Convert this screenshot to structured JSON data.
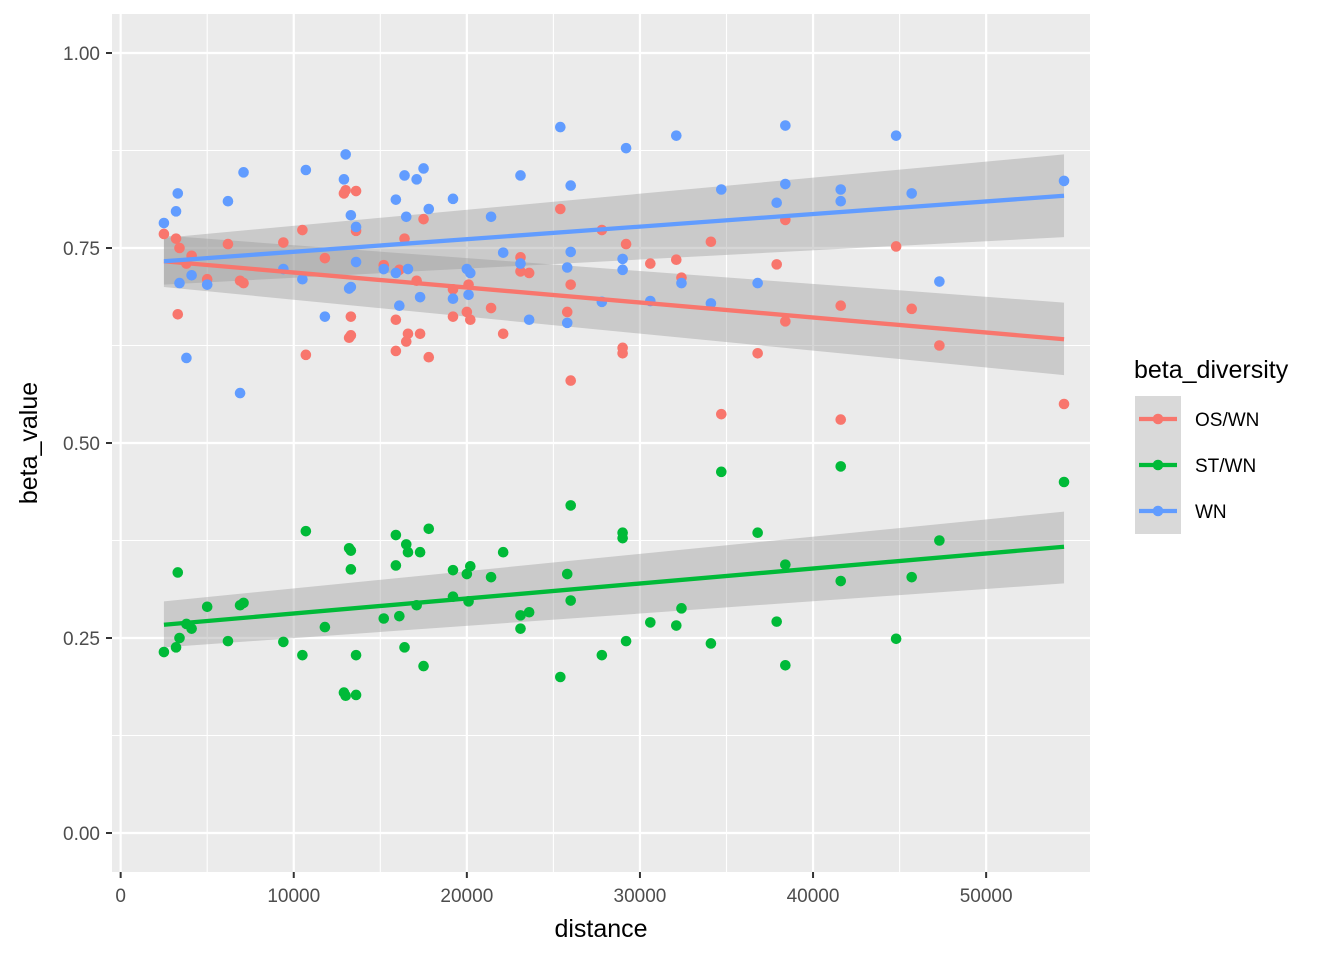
{
  "chart_data": {
    "type": "scatter",
    "xlabel": "distance",
    "ylabel": "beta_value",
    "xlim": [
      -500,
      56000
    ],
    "ylim": [
      -0.05,
      1.05
    ],
    "xticks": [
      0,
      10000,
      20000,
      30000,
      40000,
      50000
    ],
    "xtick_labels": [
      "0",
      "10000",
      "20000",
      "30000",
      "40000",
      "50000"
    ],
    "yticks": [
      0,
      0.25,
      0.5,
      0.75,
      1
    ],
    "ytick_labels": [
      "0.00",
      "0.25",
      "0.50",
      "0.75",
      "1.00"
    ],
    "grid": true,
    "legend": {
      "title": "beta_diversity",
      "position": "right"
    },
    "series": [
      {
        "name": "OS/WN",
        "color": "#F8766D",
        "trend": {
          "x": [
            2500,
            54500
          ],
          "y": [
            0.733,
            0.633
          ]
        },
        "ci": {
          "x": [
            2500,
            54500
          ],
          "upper": [
            0.766,
            0.68
          ],
          "lower": [
            0.7,
            0.587
          ]
        },
        "points": [
          [
            2500,
            0.768
          ],
          [
            3200,
            0.762
          ],
          [
            3300,
            0.665
          ],
          [
            3400,
            0.75
          ],
          [
            3800,
            0.73
          ],
          [
            4100,
            0.74
          ],
          [
            5000,
            0.71
          ],
          [
            6900,
            0.708
          ],
          [
            7100,
            0.705
          ],
          [
            6200,
            0.755
          ],
          [
            9400,
            0.757
          ],
          [
            10500,
            0.773
          ],
          [
            10700,
            0.613
          ],
          [
            11800,
            0.737
          ],
          [
            12900,
            0.82
          ],
          [
            13000,
            0.824
          ],
          [
            13200,
            0.635
          ],
          [
            13300,
            0.638
          ],
          [
            13300,
            0.662
          ],
          [
            13600,
            0.772
          ],
          [
            13600,
            0.823
          ],
          [
            15200,
            0.728
          ],
          [
            15900,
            0.658
          ],
          [
            15900,
            0.618
          ],
          [
            16100,
            0.722
          ],
          [
            16400,
            0.762
          ],
          [
            16500,
            0.63
          ],
          [
            16600,
            0.64
          ],
          [
            17100,
            0.708
          ],
          [
            17300,
            0.64
          ],
          [
            17500,
            0.787
          ],
          [
            17800,
            0.61
          ],
          [
            19200,
            0.662
          ],
          [
            19200,
            0.697
          ],
          [
            20000,
            0.668
          ],
          [
            20100,
            0.703
          ],
          [
            20200,
            0.658
          ],
          [
            21400,
            0.673
          ],
          [
            22100,
            0.64
          ],
          [
            23100,
            0.738
          ],
          [
            23100,
            0.72
          ],
          [
            23600,
            0.718
          ],
          [
            25400,
            0.8
          ],
          [
            25800,
            0.668
          ],
          [
            26000,
            0.703
          ],
          [
            26000,
            0.58
          ],
          [
            27800,
            0.773
          ],
          [
            29000,
            0.622
          ],
          [
            29000,
            0.615
          ],
          [
            29200,
            0.755
          ],
          [
            30600,
            0.73
          ],
          [
            32100,
            0.735
          ],
          [
            32400,
            0.712
          ],
          [
            34100,
            0.758
          ],
          [
            34700,
            0.537
          ],
          [
            36800,
            0.615
          ],
          [
            37900,
            0.729
          ],
          [
            38400,
            0.786
          ],
          [
            38400,
            0.656
          ],
          [
            41600,
            0.676
          ],
          [
            41600,
            0.53
          ],
          [
            44800,
            0.752
          ],
          [
            45700,
            0.672
          ],
          [
            47300,
            0.625
          ],
          [
            54500,
            0.55
          ]
        ]
      },
      {
        "name": "ST/WN",
        "color": "#00BA38",
        "trend": {
          "x": [
            2500,
            54500
          ],
          "y": [
            0.267,
            0.367
          ]
        },
        "ci": {
          "x": [
            2500,
            54500
          ],
          "upper": [
            0.297,
            0.412
          ],
          "lower": [
            0.238,
            0.32
          ]
        },
        "points": [
          [
            2500,
            0.232
          ],
          [
            3200,
            0.238
          ],
          [
            3300,
            0.334
          ],
          [
            3400,
            0.25
          ],
          [
            3800,
            0.268
          ],
          [
            4100,
            0.262
          ],
          [
            5000,
            0.29
          ],
          [
            6200,
            0.246
          ],
          [
            6900,
            0.292
          ],
          [
            7100,
            0.295
          ],
          [
            9400,
            0.245
          ],
          [
            10500,
            0.228
          ],
          [
            10700,
            0.387
          ],
          [
            11800,
            0.264
          ],
          [
            12900,
            0.18
          ],
          [
            13000,
            0.176
          ],
          [
            13200,
            0.365
          ],
          [
            13300,
            0.362
          ],
          [
            13300,
            0.338
          ],
          [
            13600,
            0.177
          ],
          [
            13600,
            0.228
          ],
          [
            15200,
            0.275
          ],
          [
            15900,
            0.382
          ],
          [
            15900,
            0.343
          ],
          [
            16100,
            0.278
          ],
          [
            16400,
            0.238
          ],
          [
            16500,
            0.37
          ],
          [
            16600,
            0.36
          ],
          [
            17100,
            0.292
          ],
          [
            17300,
            0.36
          ],
          [
            17500,
            0.214
          ],
          [
            17800,
            0.39
          ],
          [
            19200,
            0.337
          ],
          [
            19200,
            0.303
          ],
          [
            20000,
            0.332
          ],
          [
            20100,
            0.297
          ],
          [
            20200,
            0.342
          ],
          [
            21400,
            0.328
          ],
          [
            22100,
            0.36
          ],
          [
            23100,
            0.262
          ],
          [
            23100,
            0.279
          ],
          [
            23600,
            0.283
          ],
          [
            25400,
            0.2
          ],
          [
            25800,
            0.332
          ],
          [
            26000,
            0.298
          ],
          [
            26000,
            0.42
          ],
          [
            27800,
            0.228
          ],
          [
            29000,
            0.385
          ],
          [
            29000,
            0.378
          ],
          [
            29200,
            0.246
          ],
          [
            30600,
            0.27
          ],
          [
            32100,
            0.266
          ],
          [
            32400,
            0.288
          ],
          [
            34100,
            0.243
          ],
          [
            34700,
            0.463
          ],
          [
            36800,
            0.385
          ],
          [
            37900,
            0.271
          ],
          [
            38400,
            0.344
          ],
          [
            38400,
            0.215
          ],
          [
            41600,
            0.323
          ],
          [
            41600,
            0.47
          ],
          [
            44800,
            0.249
          ],
          [
            45700,
            0.328
          ],
          [
            47300,
            0.375
          ],
          [
            54500,
            0.45
          ]
        ]
      },
      {
        "name": "WN",
        "color": "#619CFF",
        "trend": {
          "x": [
            2500,
            54500
          ],
          "y": [
            0.733,
            0.817
          ]
        },
        "ci": {
          "x": [
            2500,
            54500
          ],
          "upper": [
            0.763,
            0.87
          ],
          "lower": [
            0.703,
            0.764
          ]
        },
        "points": [
          [
            2500,
            0.782
          ],
          [
            3200,
            0.797
          ],
          [
            3300,
            0.82
          ],
          [
            3400,
            0.705
          ],
          [
            3800,
            0.609
          ],
          [
            4100,
            0.715
          ],
          [
            5000,
            0.703
          ],
          [
            6200,
            0.81
          ],
          [
            6900,
            0.564
          ],
          [
            7100,
            0.847
          ],
          [
            9400,
            0.723
          ],
          [
            10500,
            0.71
          ],
          [
            10700,
            0.85
          ],
          [
            11800,
            0.662
          ],
          [
            12900,
            0.838
          ],
          [
            13000,
            0.87
          ],
          [
            13200,
            0.698
          ],
          [
            13300,
            0.792
          ],
          [
            13300,
            0.7
          ],
          [
            13600,
            0.732
          ],
          [
            13600,
            0.777
          ],
          [
            15200,
            0.723
          ],
          [
            15900,
            0.812
          ],
          [
            15900,
            0.718
          ],
          [
            16100,
            0.676
          ],
          [
            16400,
            0.843
          ],
          [
            16500,
            0.79
          ],
          [
            16600,
            0.723
          ],
          [
            17100,
            0.838
          ],
          [
            17300,
            0.687
          ],
          [
            17500,
            0.852
          ],
          [
            17800,
            0.8
          ],
          [
            19200,
            0.813
          ],
          [
            19200,
            0.685
          ],
          [
            20000,
            0.723
          ],
          [
            20100,
            0.69
          ],
          [
            20200,
            0.718
          ],
          [
            21400,
            0.79
          ],
          [
            22100,
            0.744
          ],
          [
            23100,
            0.843
          ],
          [
            23100,
            0.73
          ],
          [
            23600,
            0.658
          ],
          [
            25400,
            0.905
          ],
          [
            25800,
            0.725
          ],
          [
            26000,
            0.83
          ],
          [
            26000,
            0.745
          ],
          [
            25800,
            0.654
          ],
          [
            27800,
            0.681
          ],
          [
            29000,
            0.736
          ],
          [
            29000,
            0.722
          ],
          [
            29200,
            0.878
          ],
          [
            30600,
            0.682
          ],
          [
            32100,
            0.894
          ],
          [
            32400,
            0.705
          ],
          [
            34100,
            0.679
          ],
          [
            34700,
            0.825
          ],
          [
            36800,
            0.705
          ],
          [
            37900,
            0.808
          ],
          [
            38400,
            0.907
          ],
          [
            38400,
            0.832
          ],
          [
            41600,
            0.825
          ],
          [
            41600,
            0.81
          ],
          [
            44800,
            0.894
          ],
          [
            45700,
            0.82
          ],
          [
            47300,
            0.707
          ],
          [
            54500,
            0.836
          ]
        ]
      }
    ]
  }
}
